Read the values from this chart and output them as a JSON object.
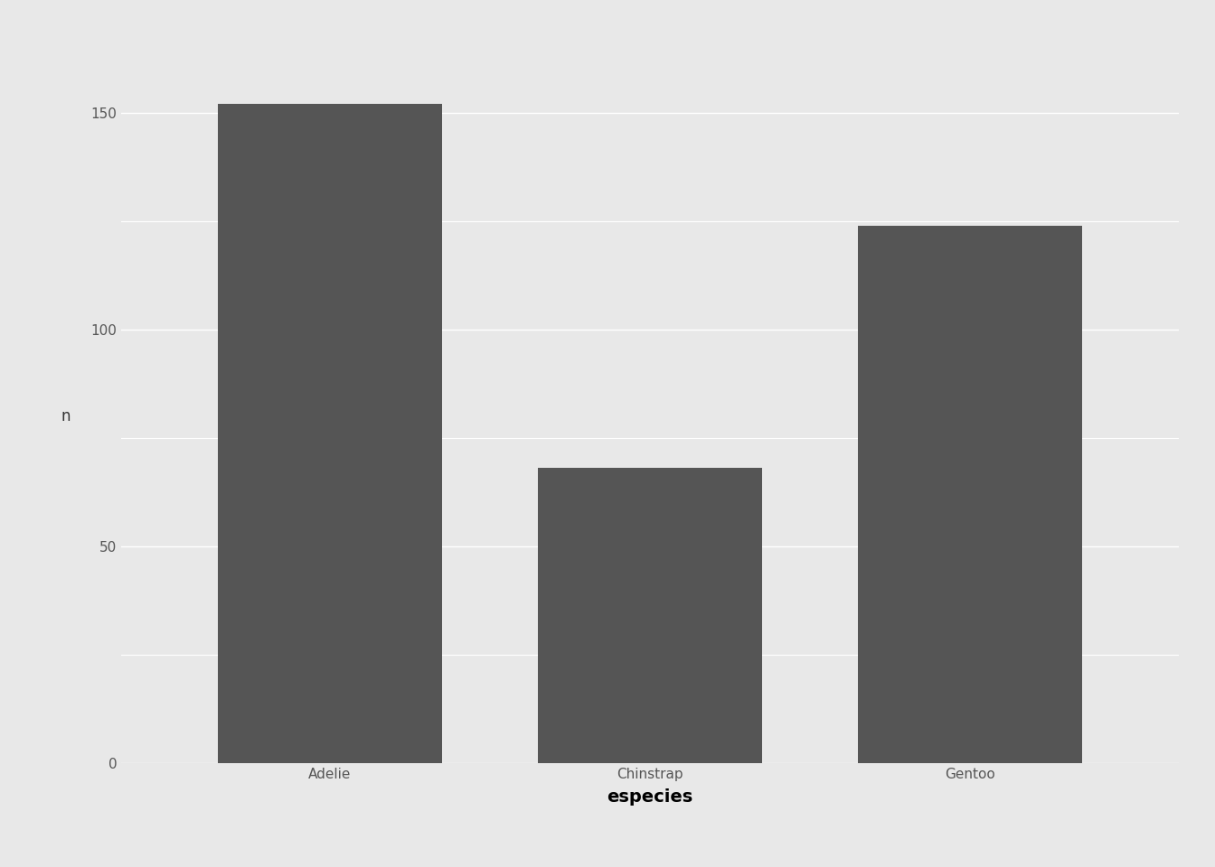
{
  "categories": [
    "Adelie",
    "Chinstrap",
    "Gentoo"
  ],
  "values": [
    152,
    68,
    124
  ],
  "bar_color": "#555555",
  "xlabel": "especies",
  "ylabel": "n",
  "ylim": [
    0,
    160
  ],
  "yticks": [
    0,
    50,
    100,
    150
  ],
  "background_color": "#e8e8e8",
  "panel_background": "#e8e8e8",
  "grid_color": "#ffffff",
  "xlabel_fontsize": 14,
  "ylabel_fontsize": 12,
  "tick_fontsize": 11,
  "bar_width": 0.7
}
